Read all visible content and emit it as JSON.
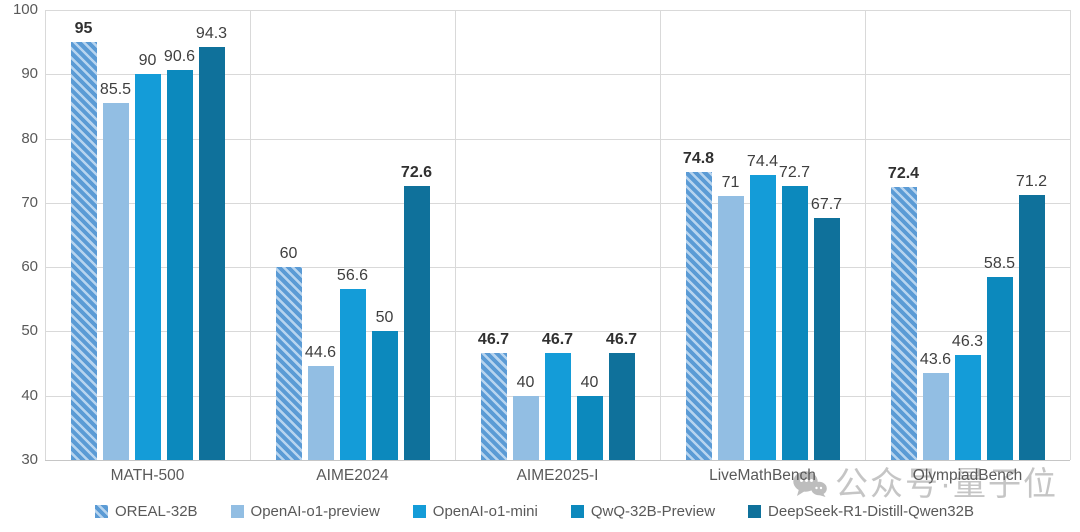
{
  "chart_data": {
    "type": "bar",
    "title": "",
    "xlabel": "",
    "ylabel": "",
    "categories": [
      "MATH-500",
      "AIME2024",
      "AIME2025-I",
      "LiveMathBench",
      "OlympiadBench"
    ],
    "series": [
      {
        "name": "OREAL-32B",
        "values": [
          95,
          60,
          46.7,
          74.8,
          72.4
        ],
        "color": "#5B9BD5",
        "pattern": "diagonal-hatch",
        "stripe_color": "#B7D4EF"
      },
      {
        "name": "OpenAI-o1-preview",
        "values": [
          85.5,
          44.6,
          40,
          71,
          43.6
        ],
        "color": "#92BEE3",
        "pattern": "solid"
      },
      {
        "name": "OpenAI-o1-mini",
        "values": [
          90,
          56.6,
          46.7,
          74.4,
          46.3
        ],
        "color": "#149CD8",
        "pattern": "solid"
      },
      {
        "name": "QwQ-32B-Preview",
        "values": [
          90.6,
          50,
          40,
          72.7,
          58.5
        ],
        "color": "#0C89BD",
        "pattern": "solid"
      },
      {
        "name": "DeepSeek-R1-Distill-Qwen32B",
        "values": [
          94.3,
          72.6,
          46.7,
          67.7,
          71.2
        ],
        "color": "#0F719B",
        "pattern": "solid"
      }
    ],
    "ylim": [
      30,
      100
    ],
    "yticks": [
      30,
      40,
      50,
      60,
      70,
      80,
      90,
      100
    ],
    "grid": true,
    "value_labels": true,
    "bold_rule": "max-value-in-each-group",
    "legend_position": "bottom"
  },
  "watermark": {
    "text": "公众号·量子位",
    "icon": "chat-bubbles-icon",
    "color": "#C5C5C5"
  },
  "colors": {
    "background": "#FFFFFF",
    "gridline": "#D9D9D9",
    "axis_baseline": "#C6C6C6",
    "tick_label": "#595959",
    "value_label": "#3F3F3F"
  }
}
